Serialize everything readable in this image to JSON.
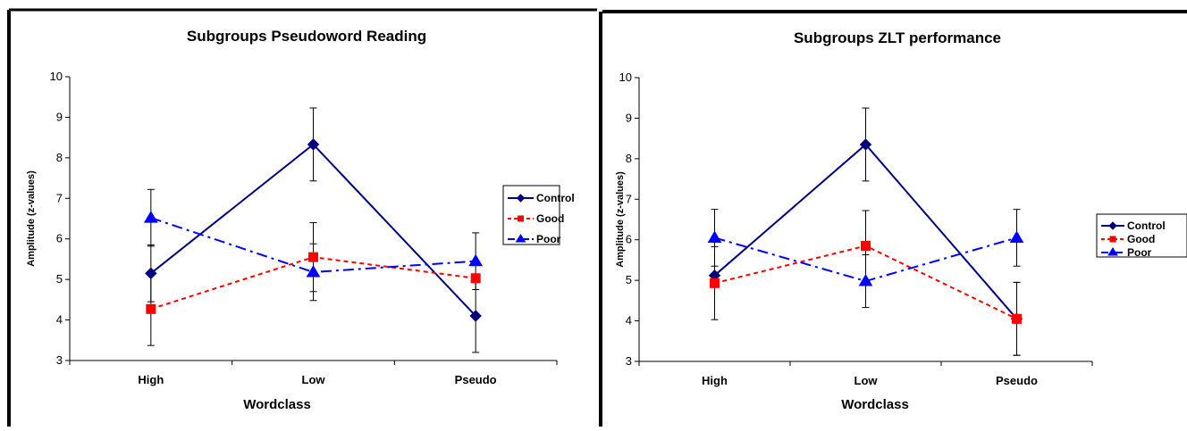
{
  "chart_data": [
    {
      "type": "line",
      "title": "Subgroups Pseudoword Reading",
      "xlabel": "Wordclass",
      "ylabel": "Amplitude (z-values)",
      "categories": [
        "High",
        "Low",
        "Pseudo"
      ],
      "ylim": [
        3,
        10
      ],
      "yticks": [
        "3",
        "4",
        "5",
        "6",
        "7",
        "8",
        "9",
        "10"
      ],
      "legend": "right",
      "series": [
        {
          "name": "Control",
          "values": [
            5.15,
            8.33,
            4.1
          ],
          "errors": [
            0.7,
            0.9,
            0.9
          ],
          "color": "#000080",
          "marker": "diamond",
          "dash": "solid"
        },
        {
          "name": "Good",
          "values": [
            4.27,
            5.55,
            5.03
          ],
          "errors": [
            0.9,
            0.85,
            0.0
          ],
          "color": "#ff0000",
          "marker": "square",
          "dash": "dotted"
        },
        {
          "name": "Poor",
          "values": [
            6.52,
            5.18,
            5.45
          ],
          "errors": [
            0.7,
            0.7,
            0.7
          ],
          "color": "#0000ff",
          "marker": "triangle",
          "dash": "dashdot"
        }
      ]
    },
    {
      "type": "line",
      "title": "Subgroups ZLT performance",
      "xlabel": "Wordclass",
      "ylabel": "Amplitude (z-values)",
      "categories": [
        "High",
        "Low",
        "Pseudo"
      ],
      "ylim": [
        3,
        10
      ],
      "yticks": [
        "3",
        "4",
        "5",
        "6",
        "7",
        "8",
        "9",
        "10"
      ],
      "legend": "right",
      "series": [
        {
          "name": "Control",
          "values": [
            5.12,
            8.35,
            4.05
          ],
          "errors": [
            0.0,
            0.9,
            0.9
          ],
          "color": "#000080",
          "marker": "diamond",
          "dash": "solid"
        },
        {
          "name": "Good",
          "values": [
            4.93,
            5.85,
            4.05
          ],
          "errors": [
            0.9,
            0.87,
            0.9
          ],
          "color": "#ff0000",
          "marker": "square",
          "dash": "dotted"
        },
        {
          "name": "Poor",
          "values": [
            6.05,
            4.98,
            6.05
          ],
          "errors": [
            0.7,
            0.65,
            0.7
          ],
          "color": "#0000ff",
          "marker": "triangle",
          "dash": "dashdot"
        }
      ]
    }
  ]
}
